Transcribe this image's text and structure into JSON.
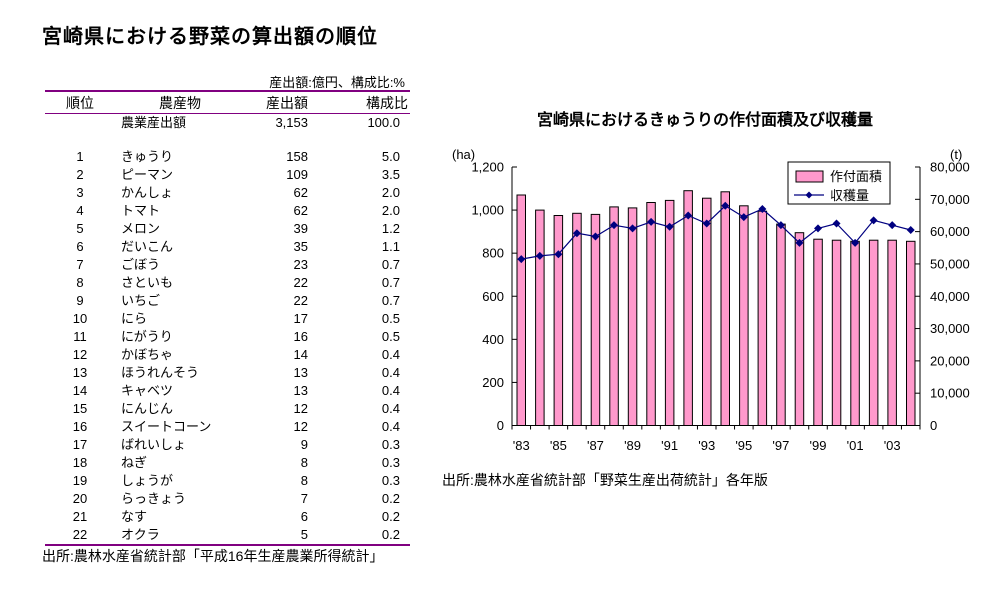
{
  "page": {
    "background": "#FFFFFF"
  },
  "colors": {
    "table_rule": "#800080",
    "bar_fill": "#FF99CC",
    "bar_border": "#000000",
    "line_color": "#000080",
    "axis_color": "#000000",
    "text_color": "#000000"
  },
  "document": {
    "title": "宮崎県における野菜の算出額の順位",
    "table": {
      "note": "産出額:億円、構成比:%",
      "columns": [
        "順位",
        "農産物",
        "産出額",
        "構成比"
      ],
      "summary_row": {
        "rank": "",
        "product": "農業産出額",
        "value": "3,153",
        "ratio": "100.0"
      },
      "rows": [
        {
          "rank": "1",
          "product": "きゅうり",
          "value": "158",
          "ratio": "5.0"
        },
        {
          "rank": "2",
          "product": "ピーマン",
          "value": "109",
          "ratio": "3.5"
        },
        {
          "rank": "3",
          "product": "かんしょ",
          "value": "62",
          "ratio": "2.0"
        },
        {
          "rank": "4",
          "product": "トマト",
          "value": "62",
          "ratio": "2.0"
        },
        {
          "rank": "5",
          "product": "メロン",
          "value": "39",
          "ratio": "1.2"
        },
        {
          "rank": "6",
          "product": "だいこん",
          "value": "35",
          "ratio": "1.1"
        },
        {
          "rank": "7",
          "product": "ごぼう",
          "value": "23",
          "ratio": "0.7"
        },
        {
          "rank": "8",
          "product": "さといも",
          "value": "22",
          "ratio": "0.7"
        },
        {
          "rank": "9",
          "product": "いちご",
          "value": "22",
          "ratio": "0.7"
        },
        {
          "rank": "10",
          "product": "にら",
          "value": "17",
          "ratio": "0.5"
        },
        {
          "rank": "11",
          "product": "にがうり",
          "value": "16",
          "ratio": "0.5"
        },
        {
          "rank": "12",
          "product": "かぼちゃ",
          "value": "14",
          "ratio": "0.4"
        },
        {
          "rank": "13",
          "product": "ほうれんそう",
          "value": "13",
          "ratio": "0.4"
        },
        {
          "rank": "14",
          "product": "キャベツ",
          "value": "13",
          "ratio": "0.4"
        },
        {
          "rank": "15",
          "product": "にんじん",
          "value": "12",
          "ratio": "0.4"
        },
        {
          "rank": "16",
          "product": "スイートコーン",
          "value": "12",
          "ratio": "0.4"
        },
        {
          "rank": "17",
          "product": "ばれいしょ",
          "value": "9",
          "ratio": "0.3"
        },
        {
          "rank": "18",
          "product": "ねぎ",
          "value": "8",
          "ratio": "0.3"
        },
        {
          "rank": "19",
          "product": "しょうが",
          "value": "8",
          "ratio": "0.3"
        },
        {
          "rank": "20",
          "product": "らっきょう",
          "value": "7",
          "ratio": "0.2"
        },
        {
          "rank": "21",
          "product": "なす",
          "value": "6",
          "ratio": "0.2"
        },
        {
          "rank": "22",
          "product": "オクラ",
          "value": "5",
          "ratio": "0.2"
        }
      ],
      "source": "出所:農林水産省統計部「平成16年生産農業所得統計」"
    }
  },
  "chart": {
    "title": "宮崎県におけるきゅうりの作付面積及び収穫量",
    "source": "出所:農林水産省統計部「野菜生産出荷統計」各年版"
  },
  "chart_data": {
    "type": "bar+line",
    "title": "宮崎県におけるきゅうりの作付面積及び収穫量",
    "categories": [
      "'83",
      "'84",
      "'85",
      "'86",
      "'87",
      "'88",
      "'89",
      "'90",
      "'91",
      "'92",
      "'93",
      "'94",
      "'95",
      "'96",
      "'97",
      "'98",
      "'99",
      "'00",
      "'01",
      "'02",
      "'03",
      "'04"
    ],
    "x_tick_labels_shown": [
      "'83",
      "'85",
      "'87",
      "'89",
      "'91",
      "'93",
      "'95",
      "'97",
      "'99",
      "'01",
      "'03"
    ],
    "series": [
      {
        "name": "作付面積",
        "type": "bar",
        "axis": "left",
        "unit": "ha",
        "color": "#FF99CC",
        "values": [
          1070,
          1000,
          975,
          985,
          980,
          1015,
          1010,
          1035,
          1045,
          1090,
          1055,
          1085,
          1020,
          995,
          935,
          895,
          865,
          860,
          855,
          860,
          860,
          855
        ]
      },
      {
        "name": "収穫量",
        "type": "line",
        "axis": "right",
        "unit": "t",
        "color": "#000080",
        "marker": "diamond",
        "values": [
          51500,
          52500,
          53000,
          59500,
          58500,
          62000,
          61000,
          63000,
          61500,
          65000,
          62500,
          68000,
          64500,
          67000,
          62000,
          56500,
          61000,
          62500,
          56500,
          63500,
          62000,
          60500
        ]
      }
    ],
    "left_axis": {
      "label": "(ha)",
      "min": 0,
      "max": 1200,
      "step": 200
    },
    "right_axis": {
      "label": "(t)",
      "min": 0,
      "max": 80000,
      "step": 10000
    },
    "legend": {
      "position": "top-right",
      "entries": [
        "作付面積",
        "収穫量"
      ]
    },
    "grid": false
  }
}
